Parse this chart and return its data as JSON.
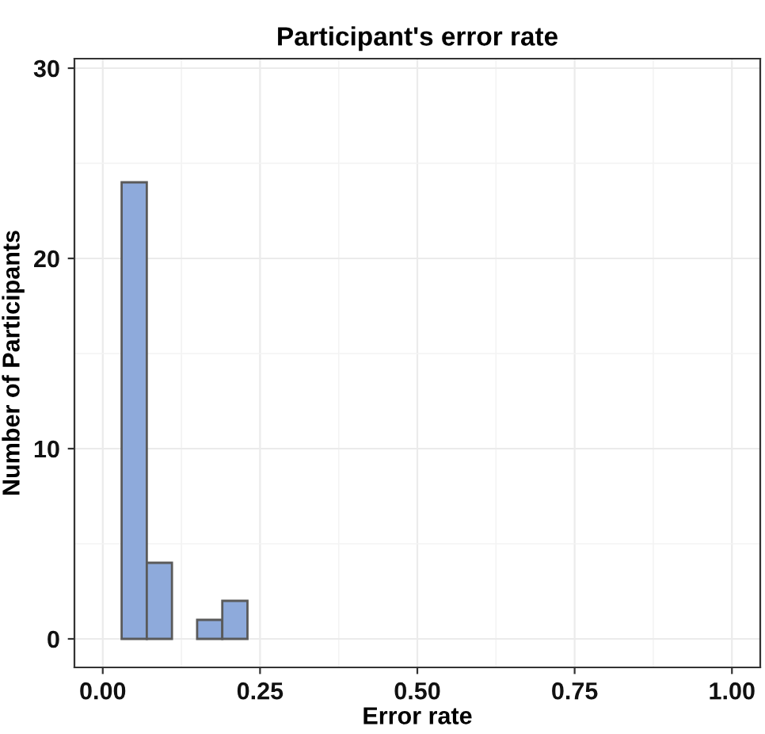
{
  "chart_data": {
    "type": "histogram",
    "title": "Participant's error rate",
    "xlabel": "Error rate",
    "ylabel": "Number of Participants",
    "bins": [
      0.03,
      0.07,
      0.11,
      0.15,
      0.19,
      0.23
    ],
    "values": [
      24,
      4,
      0,
      1,
      2
    ],
    "color": "#8eaadb",
    "xlim": [
      -0.045,
      1.045
    ],
    "xticks": [
      {
        "value": 0,
        "label": "0.00"
      },
      {
        "value": 0.25,
        "label": "0.25"
      },
      {
        "value": 0.5,
        "label": "0.50"
      },
      {
        "value": 0.75,
        "label": "0.75"
      },
      {
        "value": 1,
        "label": "1.00"
      }
    ],
    "ylim": [
      -1.5,
      30.5
    ],
    "yticks": [
      0,
      10,
      20,
      30
    ],
    "grid": true
  }
}
